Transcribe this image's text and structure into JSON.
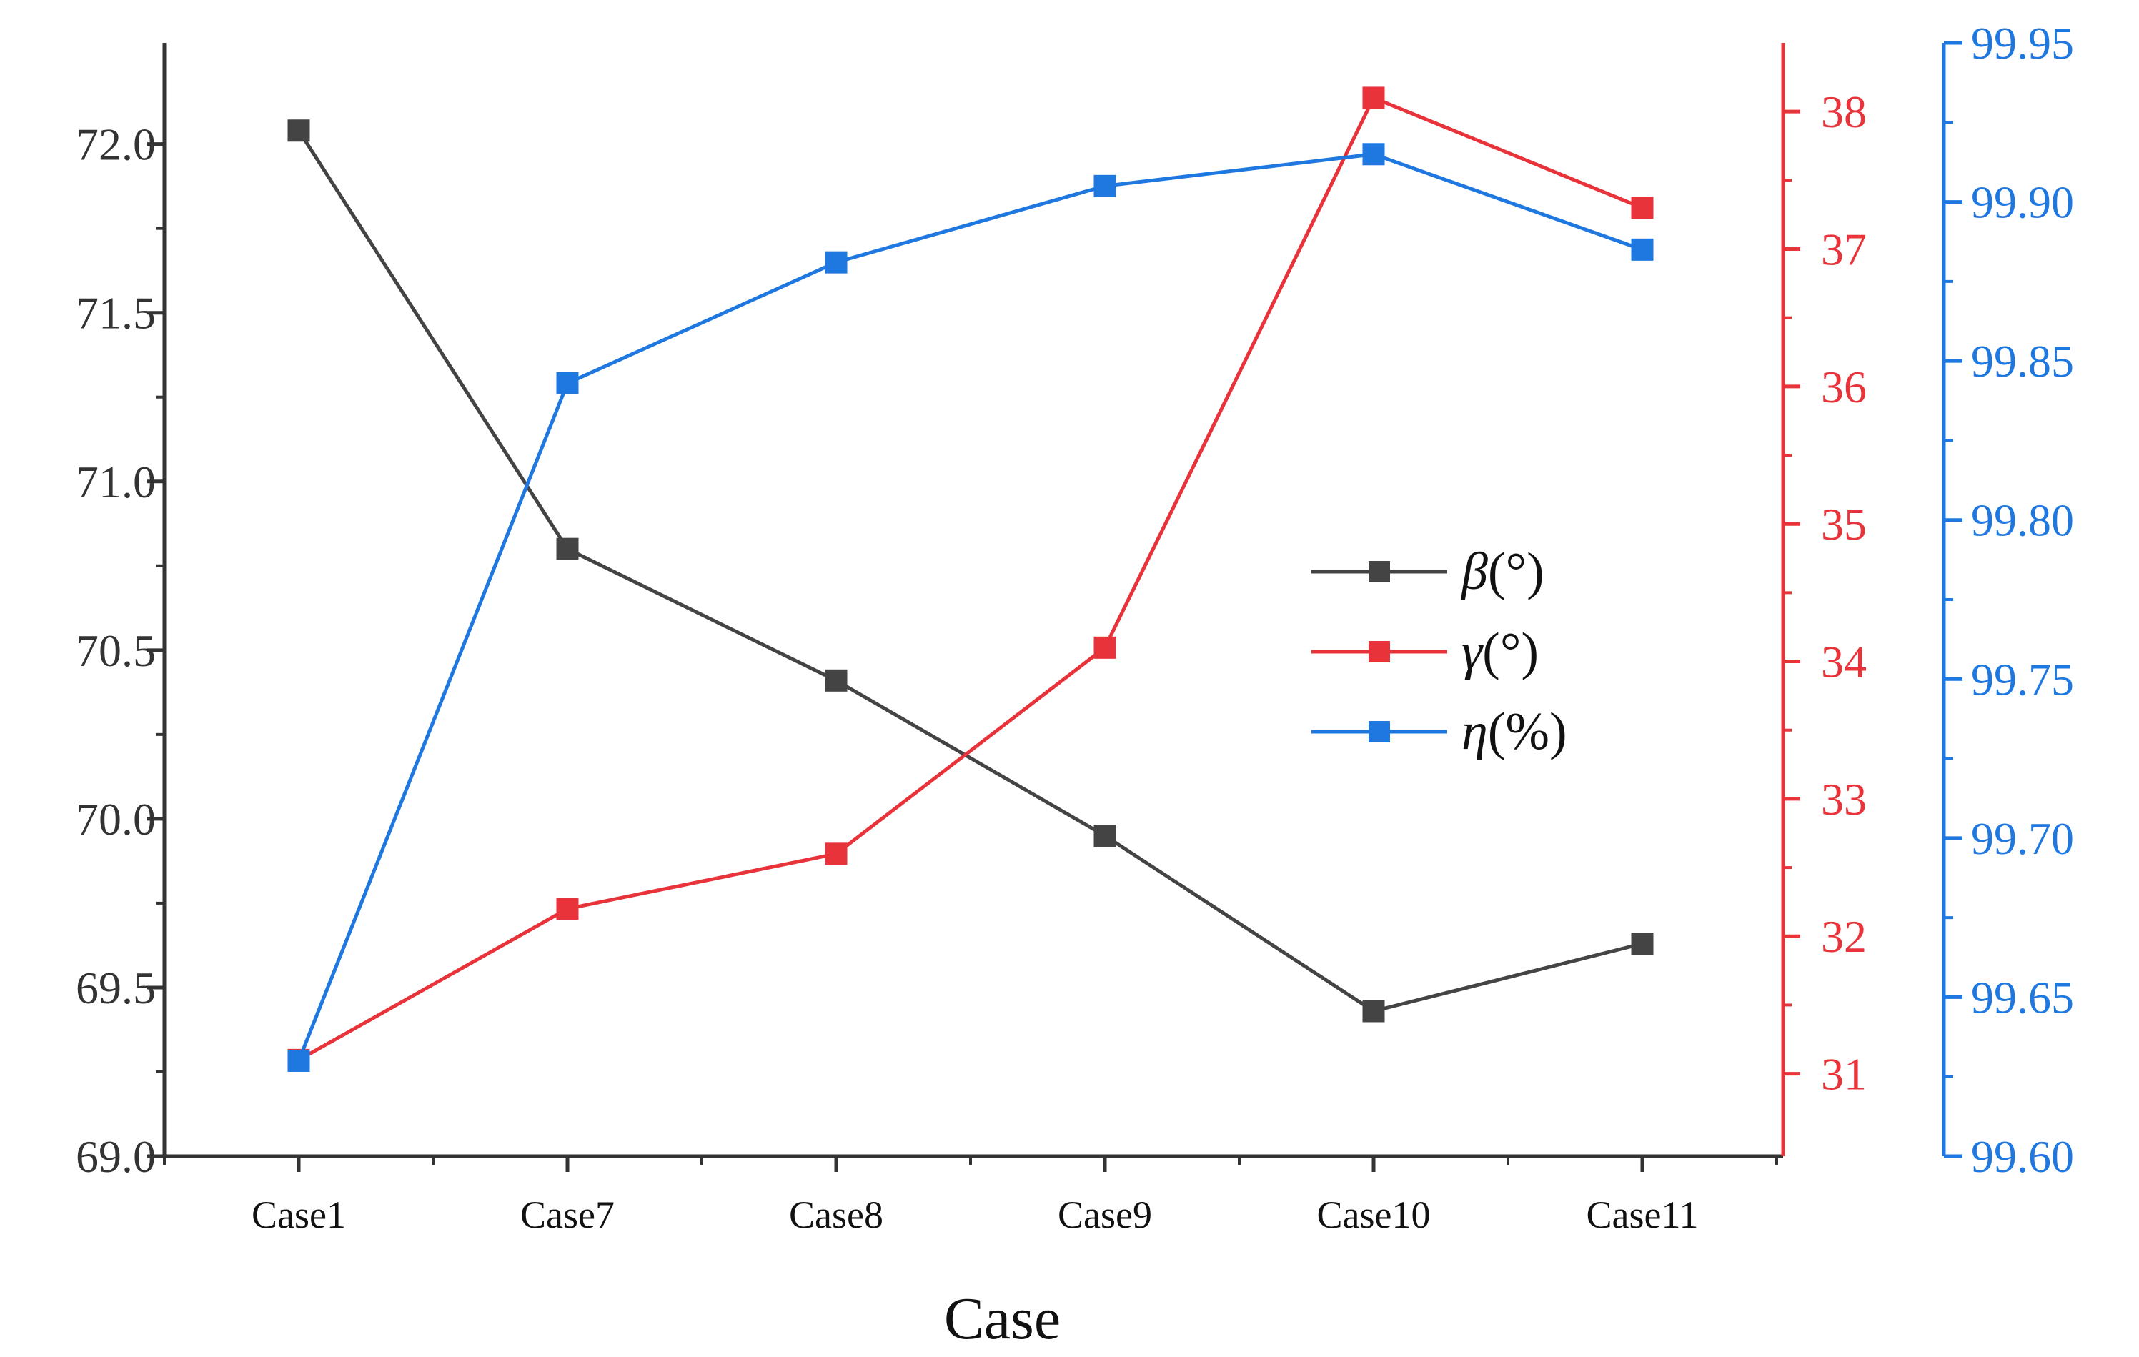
{
  "chart_data": {
    "type": "line",
    "title": "",
    "xlabel": "Case",
    "categories": [
      "Case1",
      "Case7",
      "Case8",
      "Case9",
      "Case10",
      "Case11"
    ],
    "series": [
      {
        "name": "β(°)",
        "symbol": "β",
        "unit": "(°)",
        "axis": "left",
        "color": "#444444",
        "values": [
          72.04,
          70.8,
          70.41,
          69.95,
          69.43,
          69.63
        ]
      },
      {
        "name": "γ(°)",
        "symbol": "γ",
        "unit": "(°)",
        "axis": "middle",
        "color": "#e8333a",
        "values": [
          31.1,
          32.2,
          32.6,
          34.1,
          38.1,
          37.3
        ]
      },
      {
        "name": "η(%)",
        "symbol": "η",
        "unit": "(%)",
        "axis": "right",
        "color": "#1f78e0",
        "values": [
          99.63,
          99.843,
          99.881,
          99.905,
          99.915,
          99.885
        ]
      }
    ],
    "axes": {
      "left": {
        "ylim": [
          69.0,
          72.3
        ],
        "ticks": [
          "69.0",
          "69.5",
          "70.0",
          "70.5",
          "71.0",
          "71.5",
          "72.0"
        ]
      },
      "middle": {
        "ylim": [
          30.4,
          38.5
        ],
        "ticks": [
          "31",
          "32",
          "33",
          "34",
          "35",
          "36",
          "37",
          "38"
        ]
      },
      "right": {
        "ylim": [
          99.6,
          99.95
        ],
        "ticks": [
          "99.60",
          "99.65",
          "99.70",
          "99.75",
          "99.80",
          "99.85",
          "99.90",
          "99.95"
        ]
      }
    },
    "legend_position": "center-right",
    "grid": false
  }
}
